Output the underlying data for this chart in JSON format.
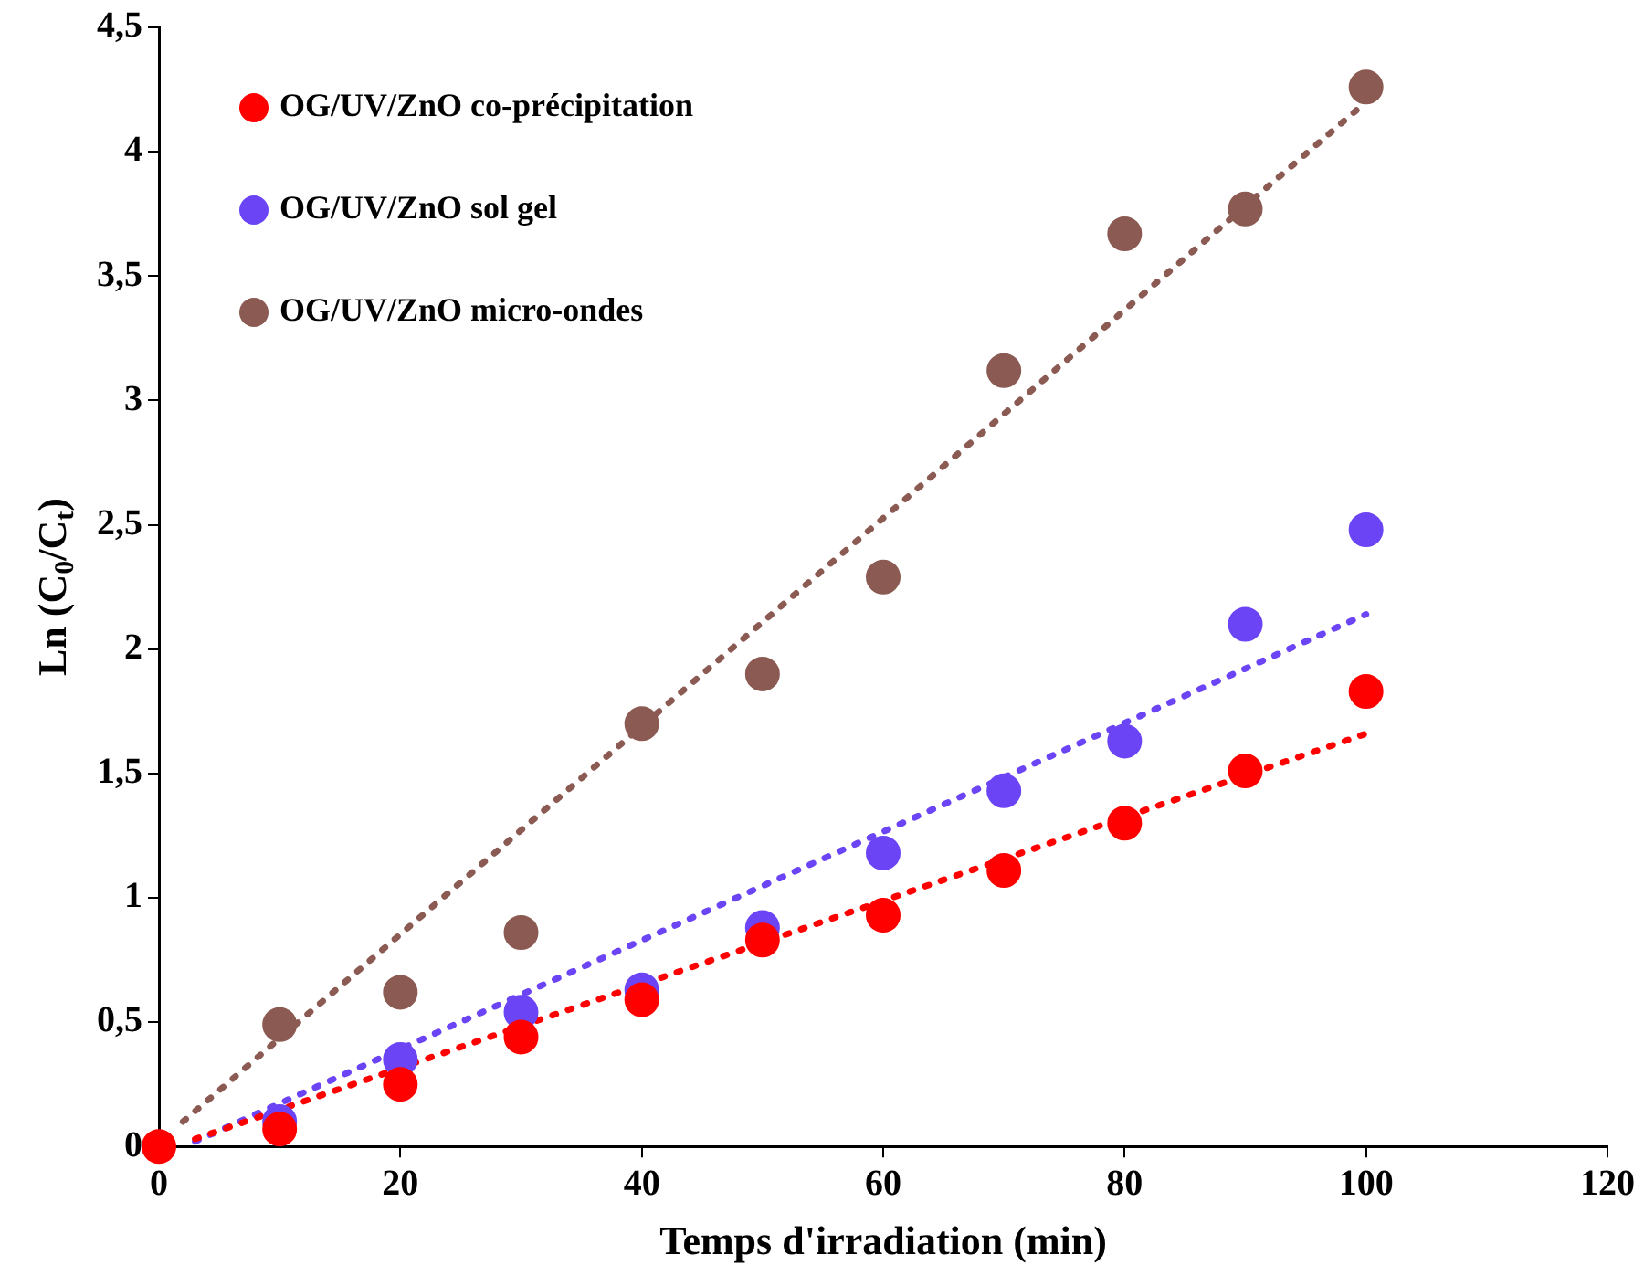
{
  "chart_data": {
    "type": "scatter",
    "xlabel": "Temps d'irradiation (min)",
    "ylabel": "Ln (C$_{0}$/C$_{t}$)",
    "xlim": [
      0,
      120
    ],
    "xticks": [
      0,
      20,
      40,
      60,
      80,
      100,
      120
    ],
    "ylim": [
      0,
      4.5
    ],
    "yticks": [
      0,
      {
        "value": 0.5,
        "label": "0,5"
      },
      1,
      {
        "value": 1.5,
        "label": "1,5"
      },
      2,
      {
        "value": 2.5,
        "label": "2,5"
      },
      3,
      {
        "value": 3.5,
        "label": "3,5"
      },
      4,
      {
        "value": 4.5,
        "label": "4,5"
      }
    ],
    "grid": false,
    "legend": "top left",
    "marker": "circle",
    "x": [
      0,
      10,
      20,
      30,
      40,
      50,
      60,
      70,
      80,
      90,
      100
    ],
    "series": [
      {
        "name": "OG/UV/ZnO co-précipitation",
        "color": "#ff0000",
        "values": [
          0,
          0.07,
          0.25,
          0.44,
          0.59,
          0.83,
          0.93,
          1.11,
          1.3,
          1.51,
          1.83
        ]
      },
      {
        "name": "OG/UV/ZnO sol gel",
        "color": "#6b45f5",
        "values": [
          null,
          0.1,
          0.35,
          0.54,
          0.63,
          0.88,
          1.18,
          1.43,
          1.63,
          2.1,
          2.48
        ]
      },
      {
        "name": "OG/UV/ZnO micro-ondes",
        "color": "#8b5a52",
        "values": [
          null,
          0.49,
          0.62,
          0.86,
          1.7,
          1.9,
          2.29,
          3.12,
          3.67,
          3.77,
          4.26
        ]
      },
      {
        "type": "line",
        "line_style": "dotted",
        "marker": "none",
        "color": "#ff0000",
        "x": [
          3,
          100
        ],
        "values": [
          0.03,
          1.66
        ]
      },
      {
        "type": "line",
        "line_style": "dotted",
        "marker": "none",
        "color": "#6b45f5",
        "x": [
          3,
          100
        ],
        "values": [
          0.02,
          2.14
        ]
      },
      {
        "type": "line",
        "line_style": "dotted",
        "marker": "none",
        "color": "#8b5a52",
        "x": [
          2,
          100
        ],
        "values": [
          0.1,
          4.2
        ]
      }
    ]
  }
}
